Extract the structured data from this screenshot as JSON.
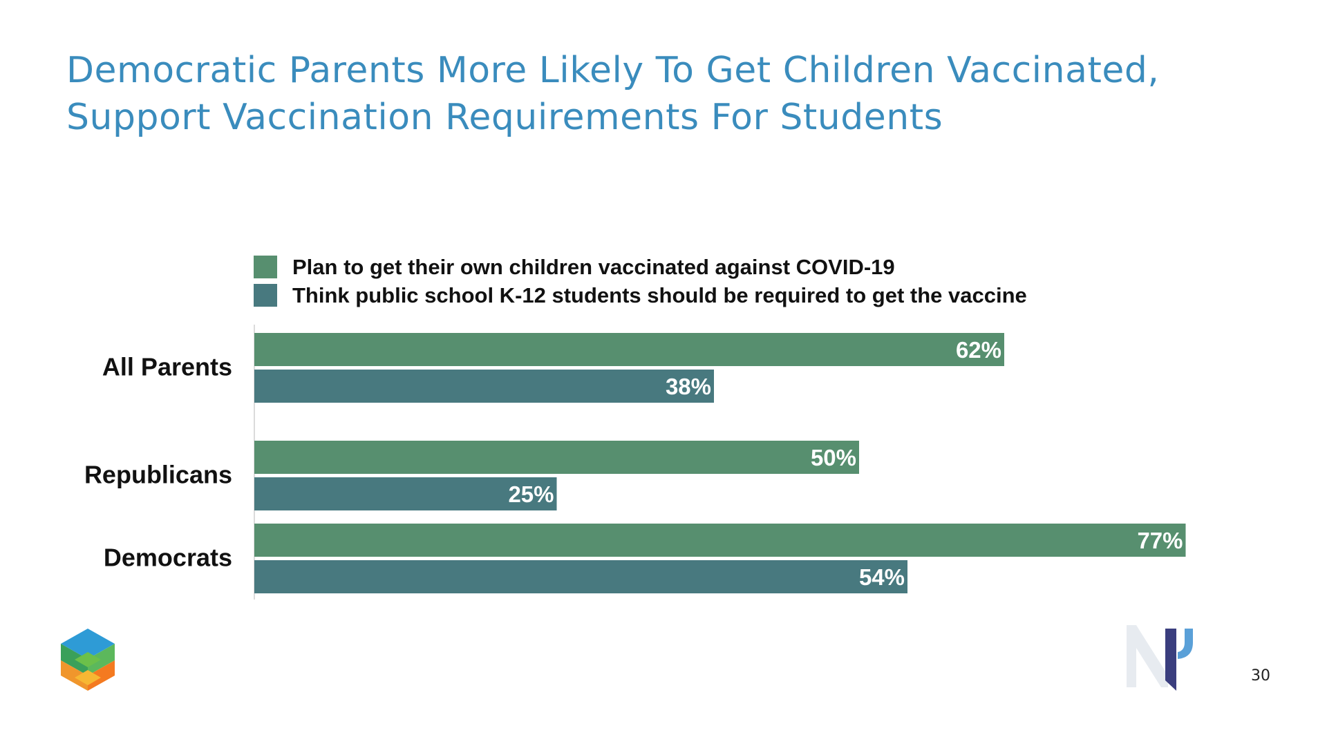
{
  "title": "Democratic Parents More Likely To Get Children Vaccinated, Support Vaccination Requirements For Students",
  "page_number": "30",
  "colors": {
    "title": "#3a8cbd",
    "series_vaccinate": "#578f6f",
    "series_require": "#48797f"
  },
  "chart_data": {
    "type": "bar",
    "orientation": "horizontal",
    "categories": [
      "All Parents",
      "Republicans",
      "Democrats"
    ],
    "series": [
      {
        "name": "Plan to get their own children vaccinated against COVID-19",
        "color": "#578f6f",
        "values": [
          62,
          50,
          77
        ],
        "labels": [
          "62%",
          "50%",
          "77%"
        ]
      },
      {
        "name": "Think public school K-12 students should be required to get the vaccine",
        "color": "#48797f",
        "values": [
          38,
          25,
          54
        ],
        "labels": [
          "38%",
          "25%",
          "54%"
        ]
      }
    ],
    "xlim": [
      0,
      100
    ],
    "grid": false,
    "legend_position": "top"
  }
}
